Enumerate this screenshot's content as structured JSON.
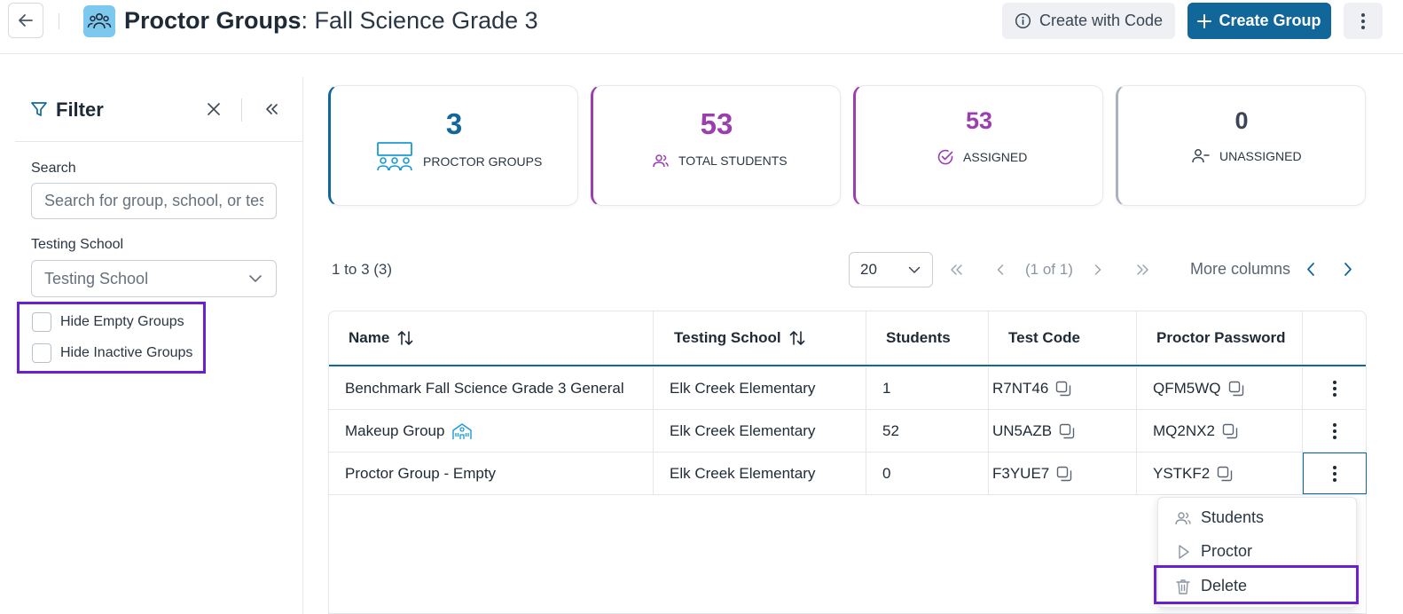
{
  "header": {
    "title_bold": "Proctor Groups",
    "title_rest": ": Fall Science Grade 3",
    "create_with_code_label": "Create with Code",
    "create_group_label": "Create Group"
  },
  "filter": {
    "title": "Filter",
    "search_label": "Search",
    "search_placeholder": "Search for group, school, or test",
    "testing_school_label": "Testing School",
    "testing_school_value": "Testing School",
    "hide_empty_label": "Hide Empty Groups",
    "hide_inactive_label": "Hide Inactive Groups"
  },
  "stats": [
    {
      "value": "3",
      "label": "PROCTOR GROUPS",
      "color": "#12679a"
    },
    {
      "value": "53",
      "label": "TOTAL STUDENTS",
      "color": "#9b3fb0"
    },
    {
      "value": "53",
      "label": "ASSIGNED",
      "color": "#9b3fb0"
    },
    {
      "value": "0",
      "label": "UNASSIGNED",
      "color": "#3a4654"
    }
  ],
  "pagination": {
    "range": "1 to 3 (3)",
    "page_size": "20",
    "page_info": "(1 of 1)",
    "more_columns": "More columns"
  },
  "table": {
    "columns": [
      "Name",
      "Testing School",
      "Students",
      "Test Code",
      "Proctor Password"
    ],
    "rows": [
      {
        "name": "Benchmark Fall Science Grade 3 General",
        "school": "Elk Creek Elementary",
        "students": "1",
        "test_code": "R7NT46",
        "password": "QFM5WQ"
      },
      {
        "name": "Makeup Group",
        "school": "Elk Creek Elementary",
        "students": "52",
        "test_code": "UN5AZB",
        "password": "MQ2NX2"
      },
      {
        "name": "Proctor Group - Empty",
        "school": "Elk Creek Elementary",
        "students": "0",
        "test_code": "F3YUE7",
        "password": "YSTKF2"
      }
    ]
  },
  "row_menu": {
    "students": "Students",
    "proctor": "Proctor",
    "delete": "Delete"
  },
  "colors": {
    "primary": "#12679a",
    "purple": "#9b3fb0",
    "highlight": "#6a1fd0"
  }
}
